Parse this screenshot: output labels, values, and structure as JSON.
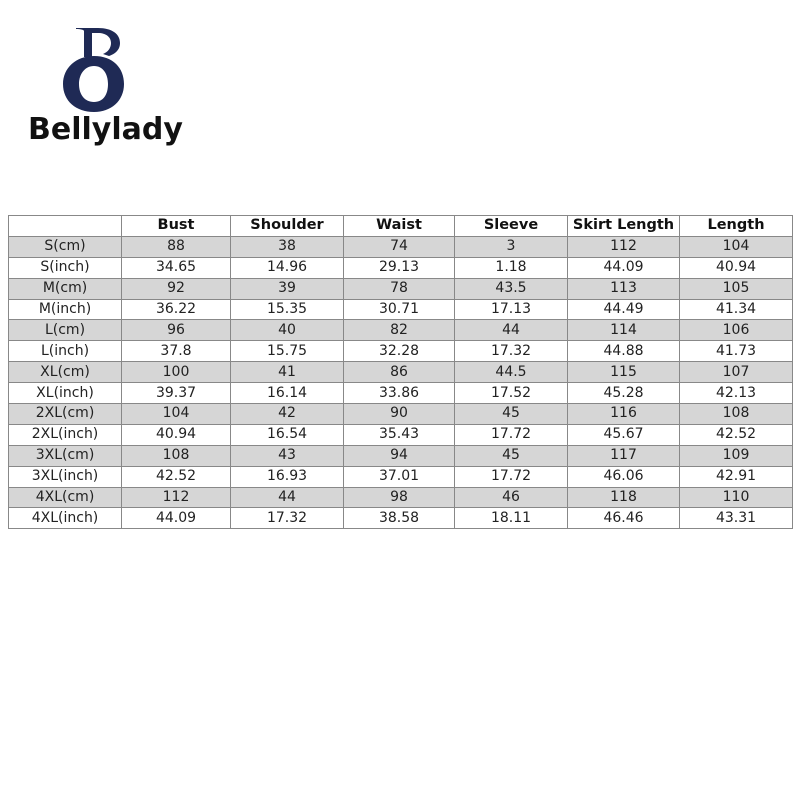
{
  "brand": {
    "name": "Bellylady",
    "monogram": "BO",
    "color": "#1f2a55"
  },
  "table": {
    "headers": [
      "",
      "Bust",
      "Shoulder",
      "Waist",
      "Sleeve",
      "Skirt Length",
      "Length"
    ],
    "rows": [
      [
        "S(cm)",
        "88",
        "38",
        "74",
        "3",
        "112",
        "104"
      ],
      [
        "S(inch)",
        "34.65",
        "14.96",
        "29.13",
        "1.18",
        "44.09",
        "40.94"
      ],
      [
        "M(cm)",
        "92",
        "39",
        "78",
        "43.5",
        "113",
        "105"
      ],
      [
        "M(inch)",
        "36.22",
        "15.35",
        "30.71",
        "17.13",
        "44.49",
        "41.34"
      ],
      [
        "L(cm)",
        "96",
        "40",
        "82",
        "44",
        "114",
        "106"
      ],
      [
        "L(inch)",
        "37.8",
        "15.75",
        "32.28",
        "17.32",
        "44.88",
        "41.73"
      ],
      [
        "XL(cm)",
        "100",
        "41",
        "86",
        "44.5",
        "115",
        "107"
      ],
      [
        "XL(inch)",
        "39.37",
        "16.14",
        "33.86",
        "17.52",
        "45.28",
        "42.13"
      ],
      [
        "2XL(cm)",
        "104",
        "42",
        "90",
        "45",
        "116",
        "108"
      ],
      [
        "2XL(inch)",
        "40.94",
        "16.54",
        "35.43",
        "17.72",
        "45.67",
        "42.52"
      ],
      [
        "3XL(cm)",
        "108",
        "43",
        "94",
        "45",
        "117",
        "109"
      ],
      [
        "3XL(inch)",
        "42.52",
        "16.93",
        "37.01",
        "17.72",
        "46.06",
        "42.91"
      ],
      [
        "4XL(cm)",
        "112",
        "44",
        "98",
        "46",
        "118",
        "110"
      ],
      [
        "4XL(inch)",
        "44.09",
        "17.32",
        "38.58",
        "18.11",
        "46.46",
        "43.31"
      ]
    ],
    "shade_color": "#d6d6d6"
  }
}
